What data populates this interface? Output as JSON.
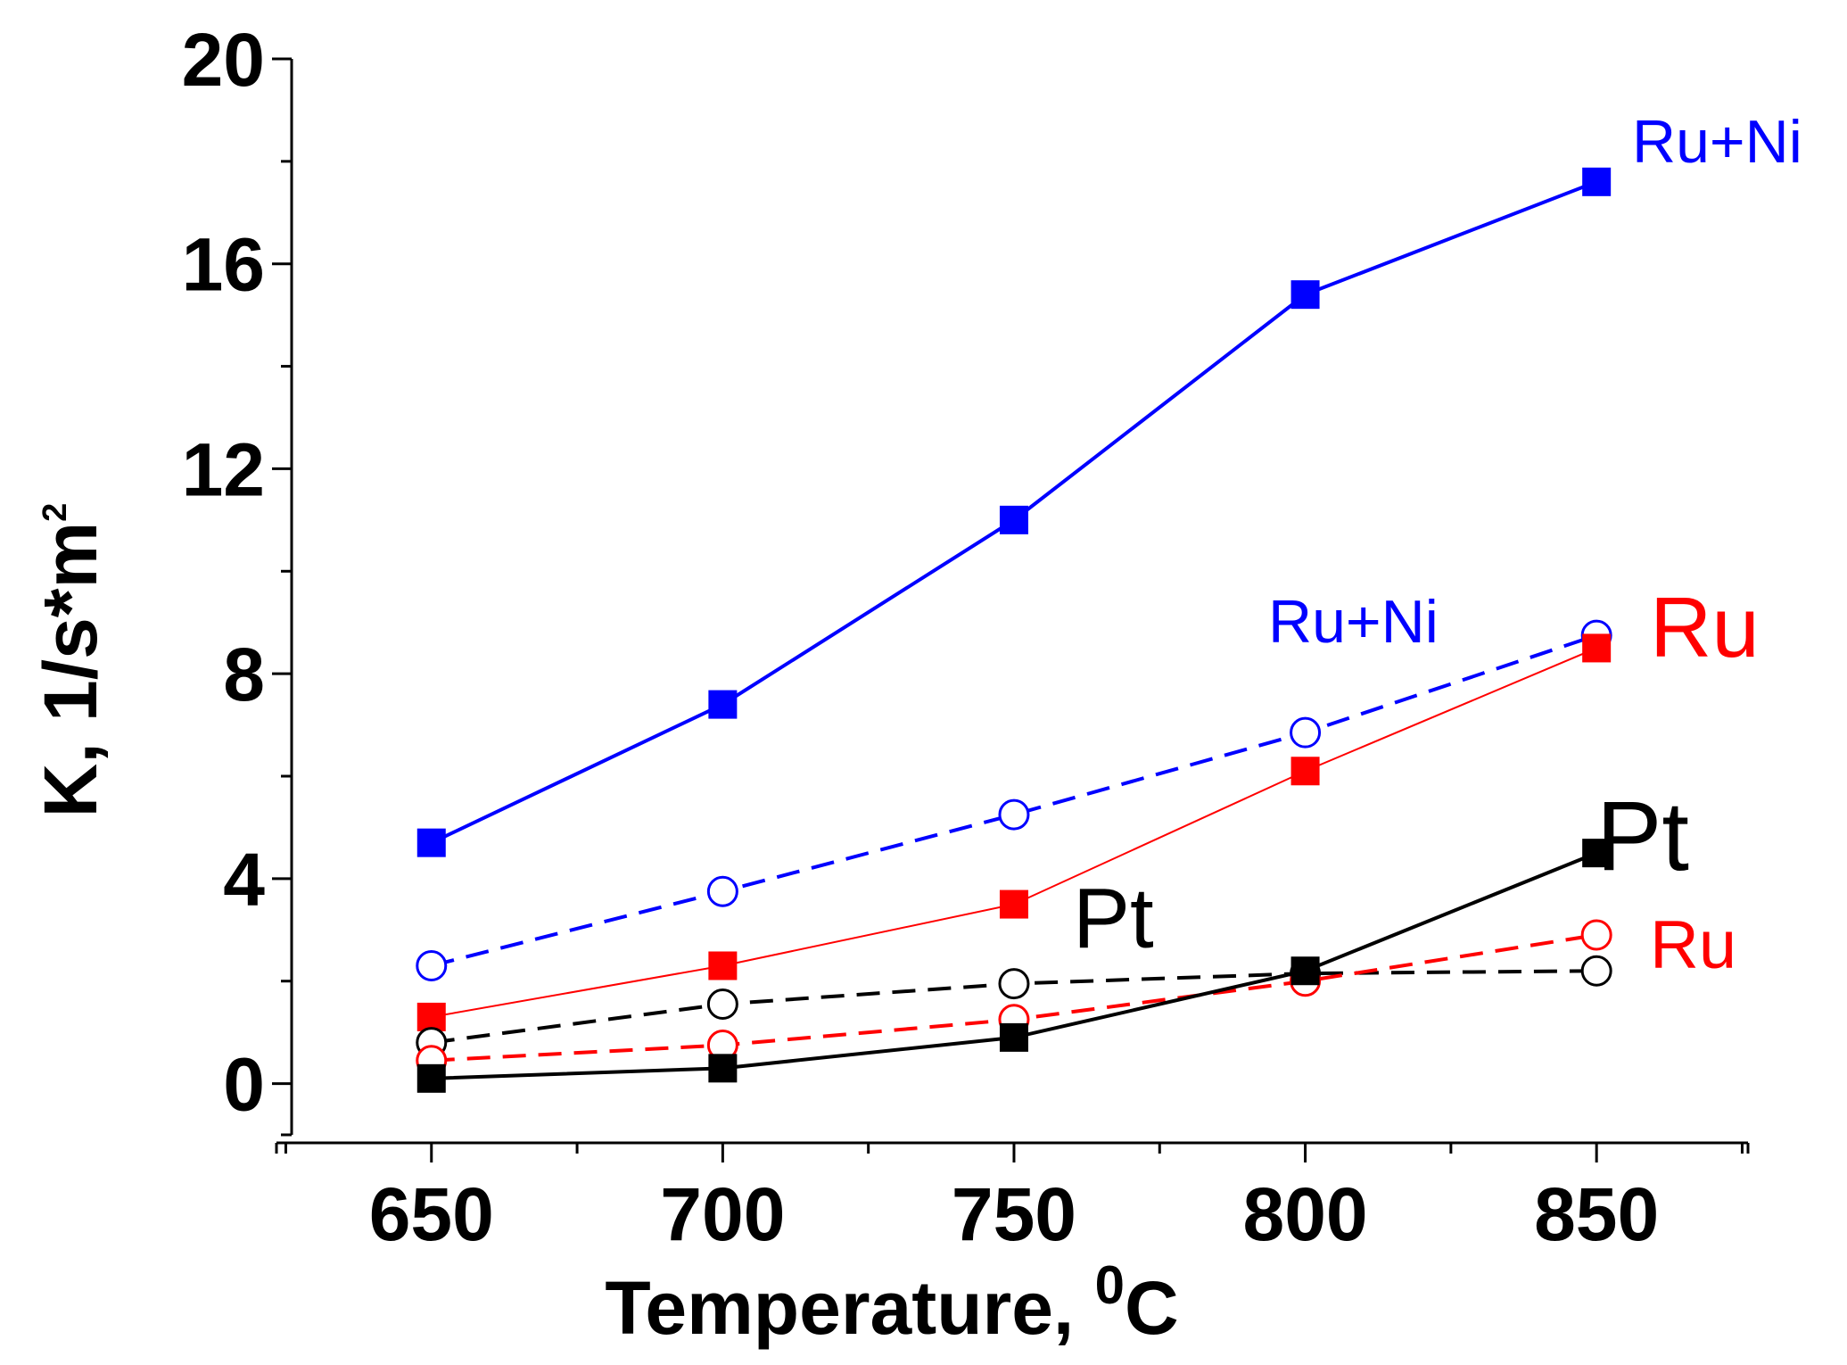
{
  "chart_data": {
    "type": "line",
    "title": "",
    "xlabel": "Temperature, ",
    "xlabel_superscript": "0",
    "xlabel_unit": "C",
    "ylabel": "K, 1/s*m",
    "ylabel_superscript": "2",
    "x": [
      650,
      700,
      750,
      800,
      850
    ],
    "xlim": [
      626,
      876
    ],
    "ylim": [
      -1,
      20
    ],
    "xticks": [
      650,
      700,
      750,
      800,
      850
    ],
    "yticks": [
      0,
      4,
      8,
      12,
      16,
      20
    ],
    "series": [
      {
        "name": "Ru+Ni (filled)",
        "marker": "square",
        "filled": true,
        "dashed": false,
        "color": "#0000ff",
        "values": [
          4.7,
          7.4,
          11.0,
          15.4,
          17.6
        ]
      },
      {
        "name": "Ru+Ni (open)",
        "marker": "circle",
        "filled": false,
        "dashed": true,
        "color": "#0000ff",
        "values": [
          2.3,
          3.75,
          5.25,
          6.85,
          8.75
        ]
      },
      {
        "name": "Ru (filled)",
        "marker": "square",
        "filled": true,
        "dashed": false,
        "color": "#ff0000",
        "values": [
          1.3,
          2.3,
          3.5,
          6.1,
          8.5
        ]
      },
      {
        "name": "Pt (open)",
        "marker": "circle",
        "filled": false,
        "dashed": true,
        "color": "#000000",
        "values": [
          0.8,
          1.55,
          1.95,
          2.15,
          2.2
        ]
      },
      {
        "name": "Ru (open)",
        "marker": "circle",
        "filled": false,
        "dashed": true,
        "color": "#ff0000",
        "values": [
          0.45,
          0.75,
          1.25,
          2.0,
          2.9
        ]
      },
      {
        "name": "Pt (filled)",
        "marker": "square",
        "filled": true,
        "dashed": false,
        "color": "#000000",
        "values": [
          0.1,
          0.3,
          0.9,
          2.2,
          4.5
        ]
      }
    ],
    "annotations": [
      {
        "text": "Ru+Ni",
        "color": "#0000ff"
      },
      {
        "text": "Ru+Ni",
        "color": "#0000ff"
      },
      {
        "text": "Ru",
        "color": "#ff0000"
      },
      {
        "text": "Ru",
        "color": "#ff0000"
      },
      {
        "text": "Pt",
        "color": "#000000"
      },
      {
        "text": "Pt",
        "color": "#000000"
      }
    ]
  }
}
